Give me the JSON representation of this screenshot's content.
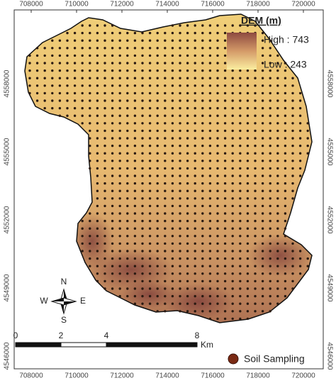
{
  "map": {
    "x_ticks": [
      708000,
      710000,
      712000,
      714000,
      716000,
      718000,
      720000
    ],
    "y_ticks": [
      4558000,
      4555000,
      4552000,
      4549000,
      4546000
    ],
    "legend": {
      "title": "DEM (m)",
      "high": "High : 743",
      "low": "Low : 243"
    },
    "north_arrow": {
      "n": "N",
      "e": "E",
      "s": "S",
      "w": "W"
    },
    "scale_bar": {
      "labels": [
        "0",
        "2",
        "4",
        "8"
      ],
      "unit": "Km"
    },
    "points_legend": "Soil Sampling"
  }
}
